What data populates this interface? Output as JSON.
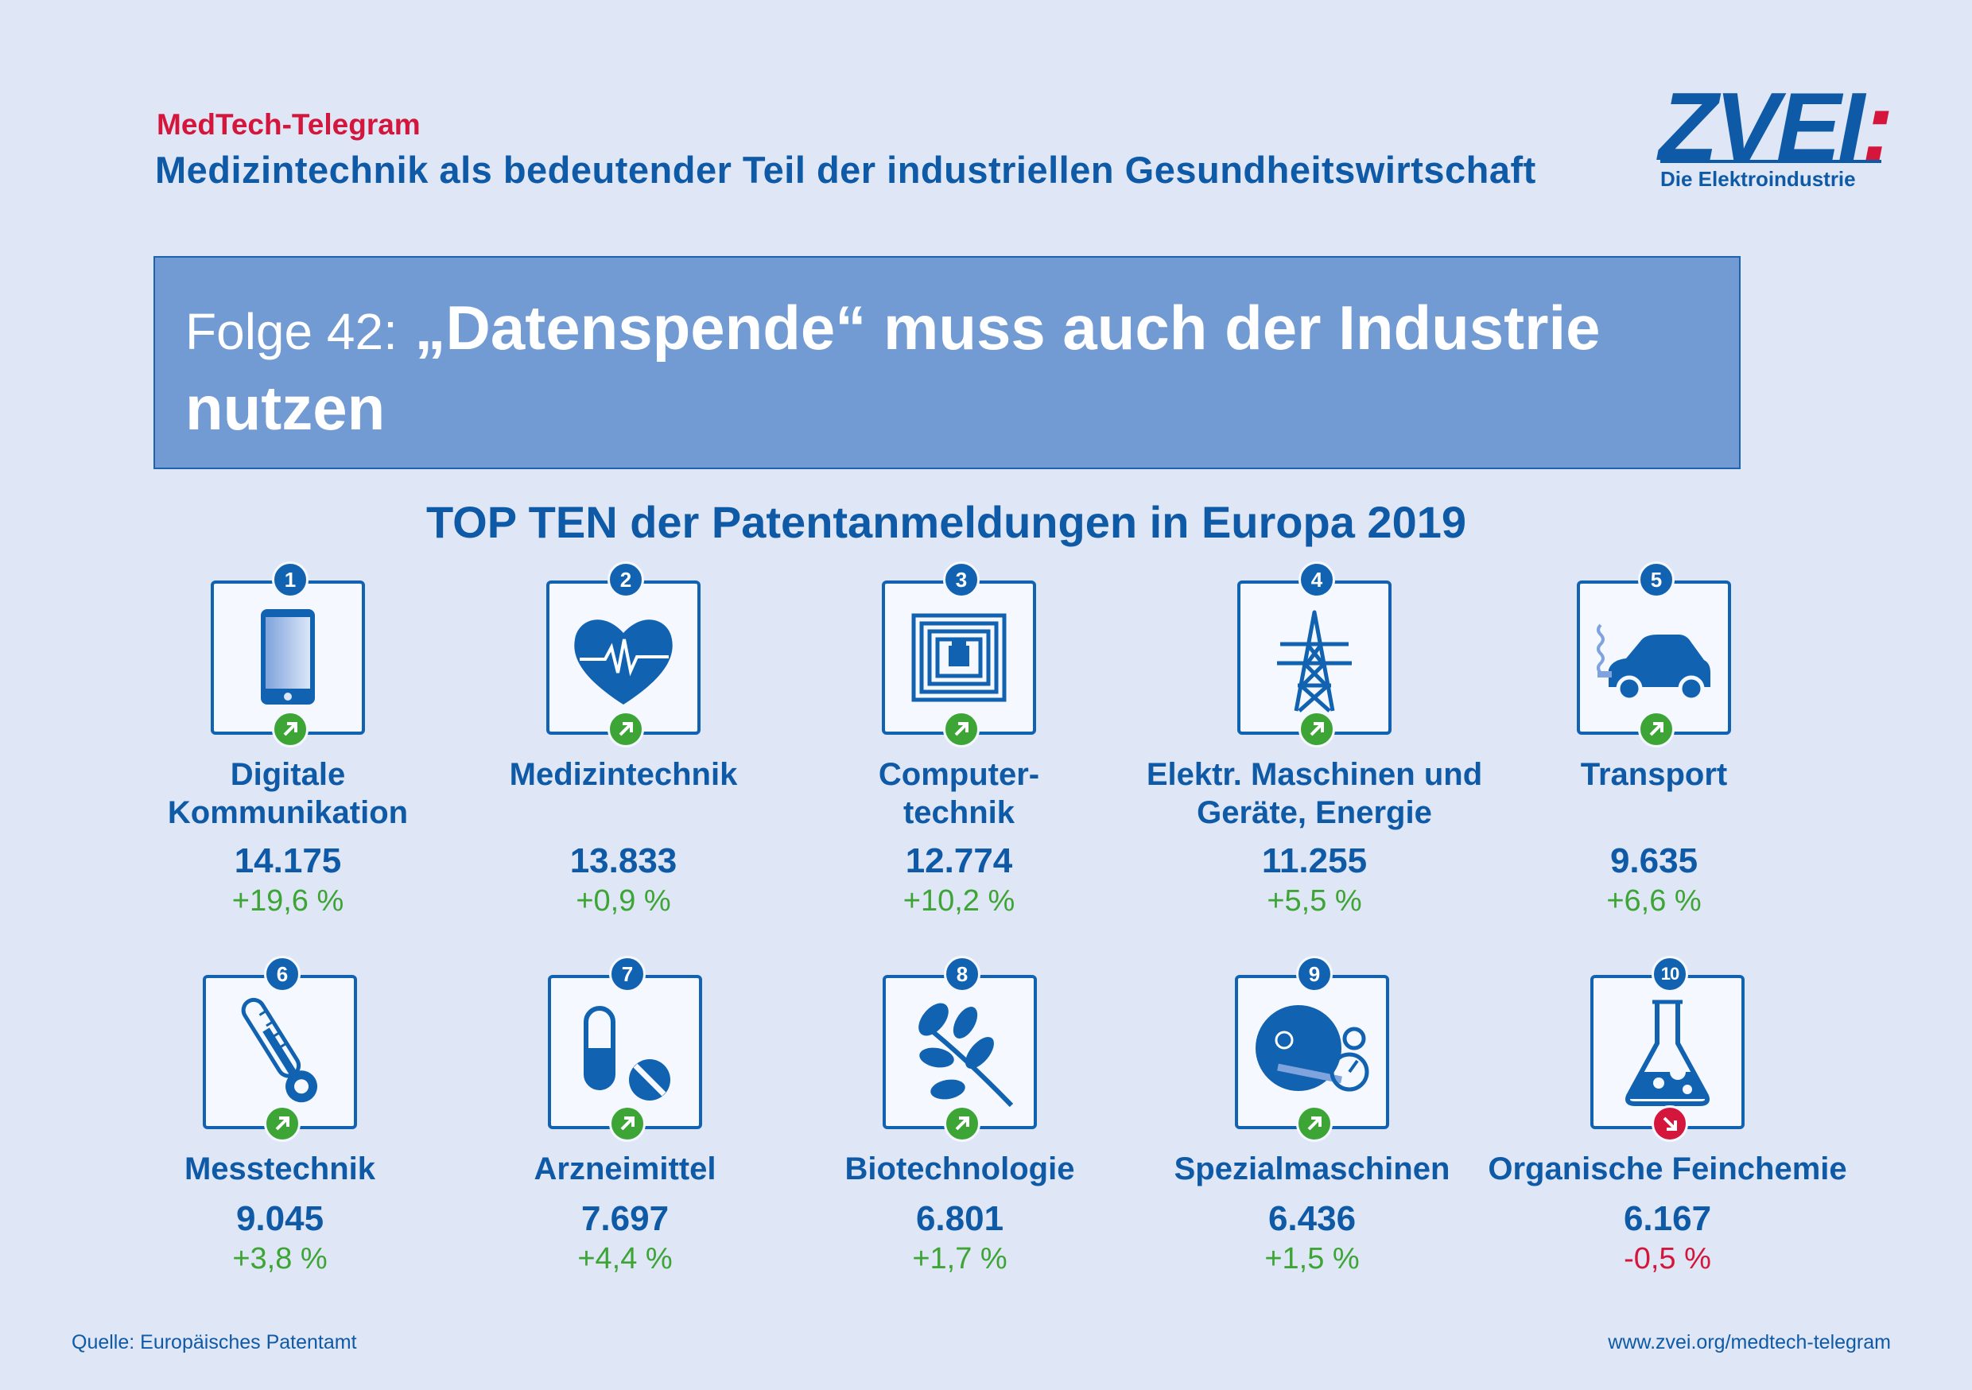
{
  "header": {
    "kicker": "MedTech-Telegram",
    "subtitle": "Medizintechnik als bedeutender Teil der industriellen Gesundheitswirtschaft"
  },
  "logo": {
    "text": "ZVEI",
    "colon": ":",
    "tagline": "Die Elektroindustrie"
  },
  "banner": {
    "prefix": "Folge 42:",
    "title": "„Datenspende“ muss auch der Industrie nutzen"
  },
  "chart_title": "TOP TEN der Patentanmeldungen in Europa 2019",
  "chart_data": {
    "type": "table",
    "title": "TOP TEN der Patentanmeldungen in Europa 2019",
    "items": [
      {
        "rank": "1",
        "label_lines": [
          "Digitale",
          "Kommunikation"
        ],
        "value": "14.175",
        "change": "+19,6 %",
        "trend": "up",
        "icon": "smartphone-icon"
      },
      {
        "rank": "2",
        "label_lines": [
          "Medizintechnik"
        ],
        "value": "13.833",
        "change": "+0,9 %",
        "trend": "up",
        "icon": "heart-pulse-icon"
      },
      {
        "rank": "3",
        "label_lines": [
          "Computer-",
          "technik"
        ],
        "value": "12.774",
        "change": "+10,2 %",
        "trend": "up",
        "icon": "chip-icon"
      },
      {
        "rank": "4",
        "label_lines": [
          "Elektr. Maschinen und",
          "Geräte, Energie"
        ],
        "value": "11.255",
        "change": "+5,5 %",
        "trend": "up",
        "icon": "power-pylon-icon"
      },
      {
        "rank": "5",
        "label_lines": [
          "Transport"
        ],
        "value": "9.635",
        "change": "+6,6 %",
        "trend": "up",
        "icon": "car-icon"
      },
      {
        "rank": "6",
        "label_lines": [
          "Messtechnik"
        ],
        "value": "9.045",
        "change": "+3,8 %",
        "trend": "up",
        "icon": "thermometer-icon"
      },
      {
        "rank": "7",
        "label_lines": [
          "Arzneimittel"
        ],
        "value": "7.697",
        "change": "+4,4 %",
        "trend": "up",
        "icon": "pills-icon"
      },
      {
        "rank": "8",
        "label_lines": [
          "Biotechnologie"
        ],
        "value": "6.801",
        "change": "+1,7 %",
        "trend": "up",
        "icon": "leaf-branch-icon"
      },
      {
        "rank": "9",
        "label_lines": [
          "Spezialmaschinen"
        ],
        "value": "6.436",
        "change": "+1,5 %",
        "trend": "up",
        "icon": "machine-disc-icon"
      },
      {
        "rank": "10",
        "label_lines": [
          "Organische Feinchemie"
        ],
        "value": "6.167",
        "change": "-0,5 %",
        "trend": "down",
        "icon": "flask-icon"
      }
    ]
  },
  "colors": {
    "background": "#dfe6f5",
    "brand_blue": "#0e5aa7",
    "banner": "#729ad3",
    "accent_red": "#d4163c",
    "trend_up": "#3da535",
    "trend_down": "#d4163c"
  },
  "footer": {
    "source": "Quelle: Europäisches Patentamt",
    "url": "www.zvei.org/medtech-telegram"
  }
}
